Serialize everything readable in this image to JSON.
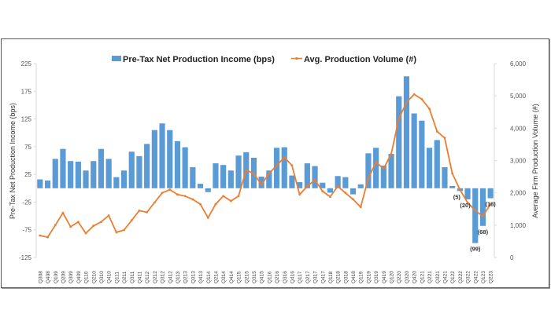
{
  "chart_data": {
    "type": "bar+line",
    "title": "",
    "legend": {
      "placement": "top-center",
      "entries": [
        {
          "name": "Pre-Tax Net Production Income (bps)",
          "kind": "bar",
          "color": "#5B9BD5"
        },
        {
          "name": "Avg. Production Volume (#)",
          "kind": "line",
          "color": "#ED7D31"
        }
      ]
    },
    "ylabel": "Pre-Tax Net Production Income (bps)",
    "y2label": "Average Firm Production Volume (#)",
    "ylim": [
      -125,
      225
    ],
    "yticks": [
      "225",
      "175",
      "125",
      "75",
      "25",
      "-25",
      "-75",
      "-125"
    ],
    "y2lim": [
      0,
      6000
    ],
    "y2ticks": [
      "6,000",
      "5,000",
      "4,000",
      "3,000",
      "2,000",
      "1,000",
      "0"
    ],
    "grid": false,
    "categories": [
      "Q308",
      "Q408",
      "Q109",
      "Q209",
      "Q309",
      "Q409",
      "Q110",
      "Q210",
      "Q310",
      "Q410",
      "Q111",
      "Q211",
      "Q311",
      "Q411",
      "Q112",
      "Q212",
      "Q312",
      "Q412",
      "Q113",
      "Q213",
      "Q313",
      "Q413",
      "Q114",
      "Q214",
      "Q314",
      "Q414",
      "Q115",
      "Q215",
      "Q315",
      "Q415",
      "Q116",
      "Q216",
      "Q316",
      "Q416",
      "Q117",
      "Q217",
      "Q317",
      "Q417",
      "Q118",
      "Q218",
      "Q318",
      "Q418",
      "Q119",
      "Q219",
      "Q319",
      "Q419",
      "Q120",
      "Q220",
      "Q320",
      "Q420",
      "Q121",
      "Q221",
      "Q321",
      "Q421",
      "Q122",
      "Q222",
      "Q322",
      "Q422",
      "Q123",
      "Q223"
    ],
    "series": [
      {
        "name": "Pre-Tax Net Production Income (bps)",
        "type": "bar",
        "axis": "left",
        "color": "#5B9BD5",
        "values": [
          16,
          14,
          53,
          71,
          49,
          48,
          32,
          49,
          71,
          53,
          20,
          32,
          66,
          58,
          80,
          105,
          117,
          105,
          85,
          74,
          38,
          8,
          -7,
          45,
          42,
          32,
          59,
          65,
          55,
          21,
          32,
          73,
          74,
          23,
          11,
          45,
          40,
          10,
          -8,
          22,
          20,
          -11,
          7,
          63,
          73,
          41,
          62,
          166,
          202,
          135,
          122,
          73,
          87,
          38,
          4,
          -5,
          -20,
          -99,
          -68,
          -18
        ]
      },
      {
        "name": "Avg. Production Volume (#)",
        "type": "line",
        "axis": "right",
        "color": "#ED7D31",
        "values": [
          680,
          630,
          1000,
          1380,
          950,
          1100,
          750,
          980,
          1100,
          1300,
          780,
          850,
          1150,
          1450,
          1400,
          1700,
          2000,
          2100,
          1950,
          1900,
          1800,
          1650,
          1230,
          1650,
          1900,
          1750,
          1900,
          2700,
          2600,
          2250,
          2600,
          2850,
          3100,
          2850,
          1950,
          2200,
          2400,
          2050,
          1880,
          2200,
          2000,
          1800,
          1560,
          2450,
          2950,
          2750,
          3200,
          4300,
          4800,
          5050,
          4900,
          4600,
          3900,
          3700,
          2600,
          2100,
          1700,
          1450,
          1280,
          1650
        ]
      }
    ],
    "data_labels": [
      {
        "category": "Q222",
        "text": "(5)"
      },
      {
        "category": "Q322",
        "text": "(20)"
      },
      {
        "category": "Q422",
        "text": "(99)"
      },
      {
        "category": "Q123",
        "text": "(68)"
      },
      {
        "category": "Q223",
        "text": "(18)"
      }
    ]
  }
}
